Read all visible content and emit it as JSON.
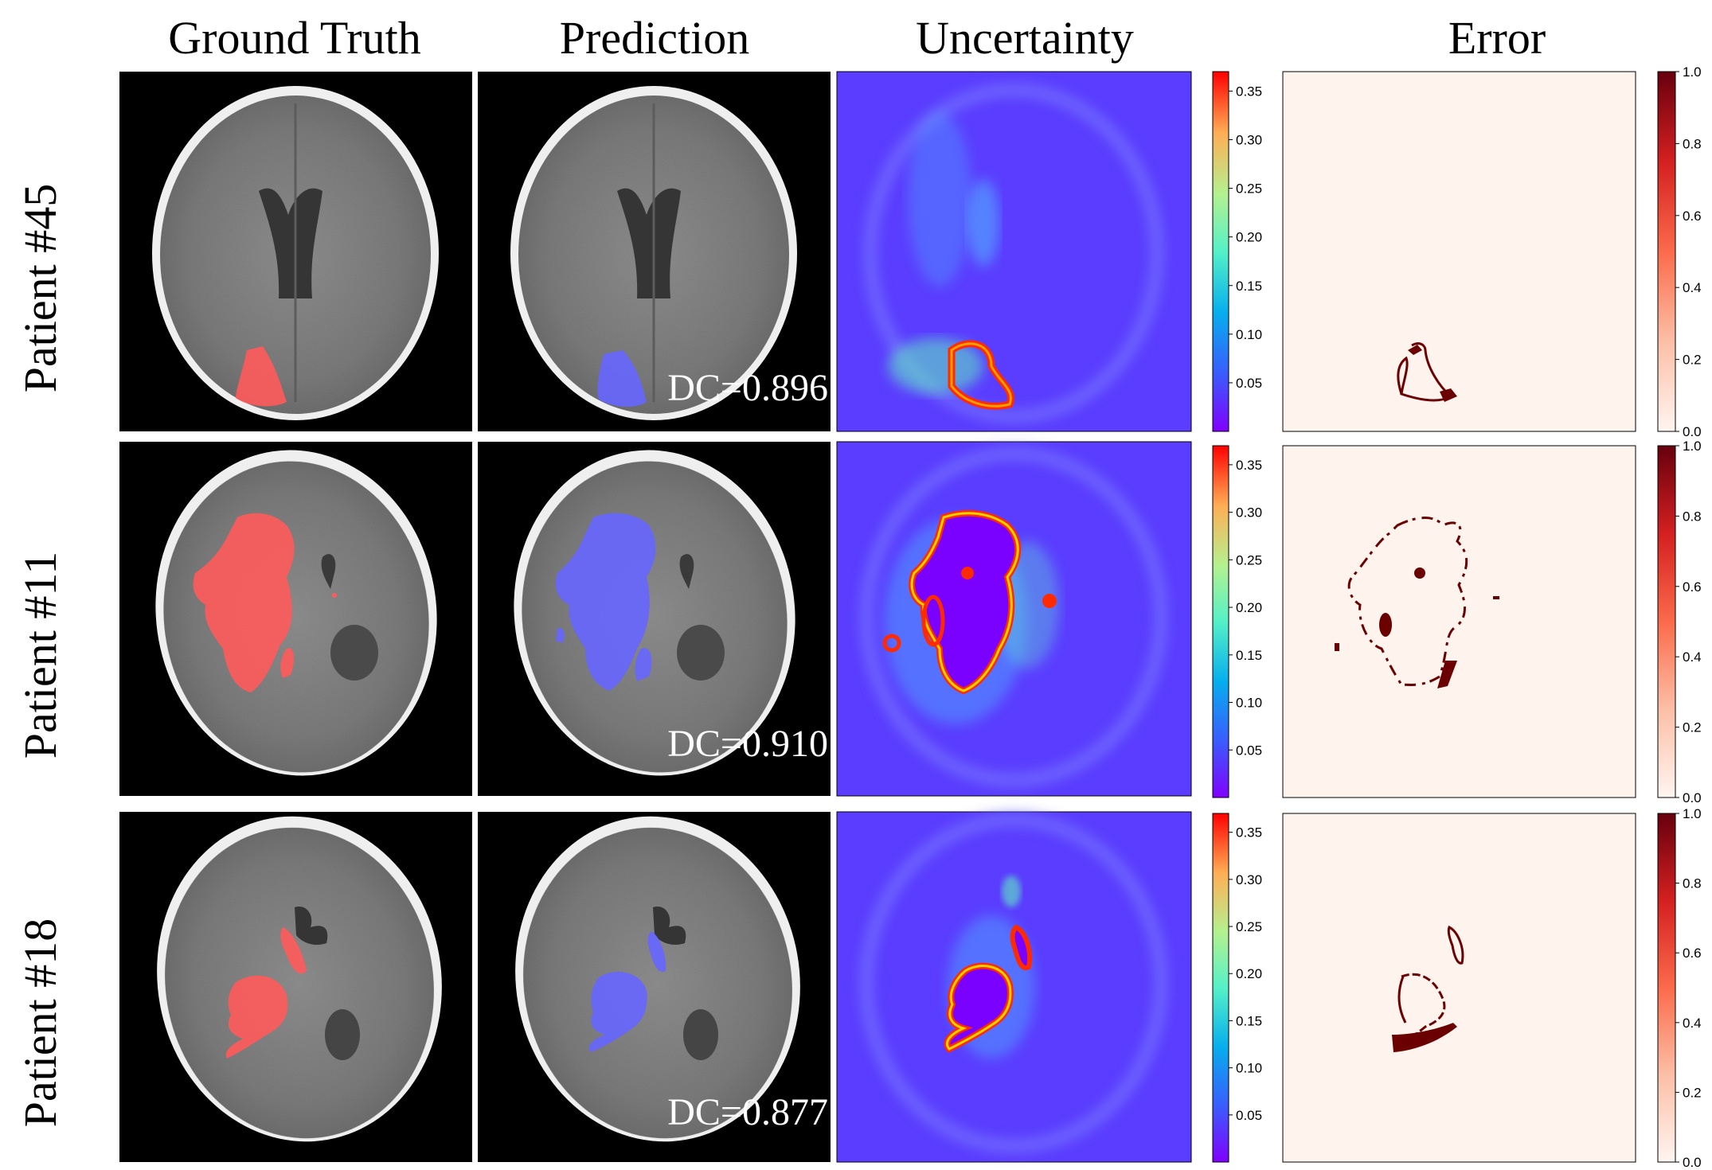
{
  "figure": {
    "columns": [
      {
        "key": "gt",
        "title": "Ground Truth"
      },
      {
        "key": "pred",
        "title": "Prediction"
      },
      {
        "key": "unc",
        "title": "Uncertainty"
      },
      {
        "key": "err",
        "title": "Error"
      }
    ],
    "rows": [
      {
        "patient": "Patient #45",
        "dice": "DC=0.896"
      },
      {
        "patient": "Patient #11",
        "dice": "DC=0.910"
      },
      {
        "patient": "Patient #18",
        "dice": "DC=0.877"
      }
    ],
    "uncertainty_colorbar": {
      "colormap": "rainbow",
      "range": [
        0.0,
        0.37
      ],
      "ticks": [
        "0.05",
        "0.10",
        "0.15",
        "0.20",
        "0.25",
        "0.30",
        "0.35"
      ],
      "tick_values": [
        0.05,
        0.1,
        0.15,
        0.2,
        0.25,
        0.3,
        0.35
      ]
    },
    "error_colorbar": {
      "colormap": "Reds",
      "range": [
        0.0,
        1.0
      ],
      "ticks": [
        "0.0",
        "0.2",
        "0.4",
        "0.6",
        "0.8",
        "1.0"
      ],
      "tick_values": [
        0.0,
        0.2,
        0.4,
        0.6,
        0.8,
        1.0
      ]
    },
    "colors": {
      "ground_truth_overlay": "#ff5a5a",
      "prediction_overlay": "#6666ff",
      "uncertainty_background": "#5a3dff",
      "uncertainty_high": "#ff2a00",
      "error_background": "#fff3ee",
      "error_marks": "#6b0000",
      "ct_background": "#000000"
    }
  }
}
